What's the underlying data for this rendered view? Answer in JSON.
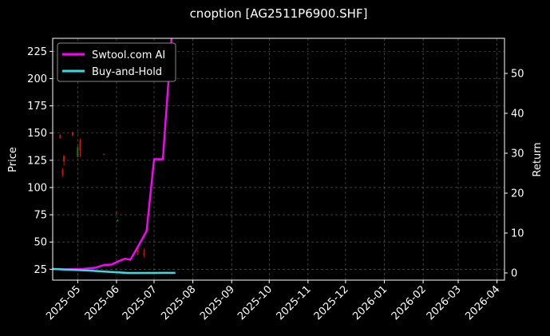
{
  "chart_data": {
    "type": "line",
    "title": "cnoption [AG2511P6900.SHF]",
    "background": "#000000",
    "grid": true,
    "legend_placement": "top-left",
    "left_axis": {
      "label": "Price",
      "ylim": [
        15,
        237
      ],
      "ticks": [
        25,
        50,
        75,
        100,
        125,
        150,
        175,
        200,
        225
      ]
    },
    "right_axis": {
      "label": "Return",
      "ylim": [
        -1.8,
        58.8
      ],
      "ticks": [
        0,
        10,
        20,
        30,
        40,
        50
      ]
    },
    "x_axis": {
      "range": [
        "2025-04-11",
        "2026-04-07"
      ],
      "ticks": [
        "2025-05",
        "2025-06",
        "2025-07",
        "2025-08",
        "2025-09",
        "2025-10",
        "2025-11",
        "2025-12",
        "2026-01",
        "2026-02",
        "2026-03",
        "2026-04"
      ]
    },
    "series": [
      {
        "name": "Swtool.com AI",
        "axis": "right",
        "color": "#ff00ff",
        "points": [
          [
            "2025-04-11",
            1.0
          ],
          [
            "2025-04-20",
            0.9
          ],
          [
            "2025-05-05",
            1.0
          ],
          [
            "2025-05-15",
            1.3
          ],
          [
            "2025-05-22",
            2.0
          ],
          [
            "2025-05-28",
            2.1
          ],
          [
            "2025-06-03",
            3.0
          ],
          [
            "2025-06-08",
            3.6
          ],
          [
            "2025-06-12",
            3.3
          ],
          [
            "2025-06-18",
            6.5
          ],
          [
            "2025-06-25",
            10.5
          ],
          [
            "2025-07-01",
            28.5
          ],
          [
            "2025-07-08",
            28.5
          ],
          [
            "2025-07-15",
            58.8
          ]
        ]
      },
      {
        "name": "Buy-and-Hold",
        "axis": "right",
        "color": "#33dde6",
        "points": [
          [
            "2025-04-11",
            1.0
          ],
          [
            "2025-04-25",
            0.8
          ],
          [
            "2025-05-10",
            0.6
          ],
          [
            "2025-05-25",
            0.3
          ],
          [
            "2025-06-10",
            0.0
          ],
          [
            "2025-06-25",
            0.0
          ],
          [
            "2025-07-10",
            0.05
          ],
          [
            "2025-07-18",
            0.05
          ]
        ]
      }
    ],
    "candles": {
      "axis": "left",
      "up_color": "#1a7a1a",
      "down_color": "#cc1111",
      "items": [
        {
          "date": "2025-04-17",
          "open": 148,
          "high": 149,
          "low": 145,
          "close": 145
        },
        {
          "date": "2025-04-19",
          "open": 116,
          "high": 118,
          "low": 110,
          "close": 112
        },
        {
          "date": "2025-04-20",
          "open": 129,
          "high": 130,
          "low": 120,
          "close": 124
        },
        {
          "date": "2025-04-27",
          "open": 151,
          "high": 151,
          "low": 147,
          "close": 148
        },
        {
          "date": "2025-05-01",
          "open": 128,
          "high": 138,
          "low": 128,
          "close": 137
        },
        {
          "date": "2025-05-03",
          "open": 143,
          "high": 145,
          "low": 128,
          "close": 134
        },
        {
          "date": "2025-05-22",
          "open": 131,
          "high": 131,
          "low": 130,
          "close": 130
        },
        {
          "date": "2025-06-01",
          "open": 77,
          "high": 78,
          "low": 76,
          "close": 76
        },
        {
          "date": "2025-06-02",
          "open": 69,
          "high": 71,
          "low": 69,
          "close": 70
        },
        {
          "date": "2025-06-18",
          "open": 42,
          "high": 45,
          "low": 38,
          "close": 40
        },
        {
          "date": "2025-06-23",
          "open": 40,
          "high": 44,
          "low": 36,
          "close": 38
        }
      ]
    }
  }
}
